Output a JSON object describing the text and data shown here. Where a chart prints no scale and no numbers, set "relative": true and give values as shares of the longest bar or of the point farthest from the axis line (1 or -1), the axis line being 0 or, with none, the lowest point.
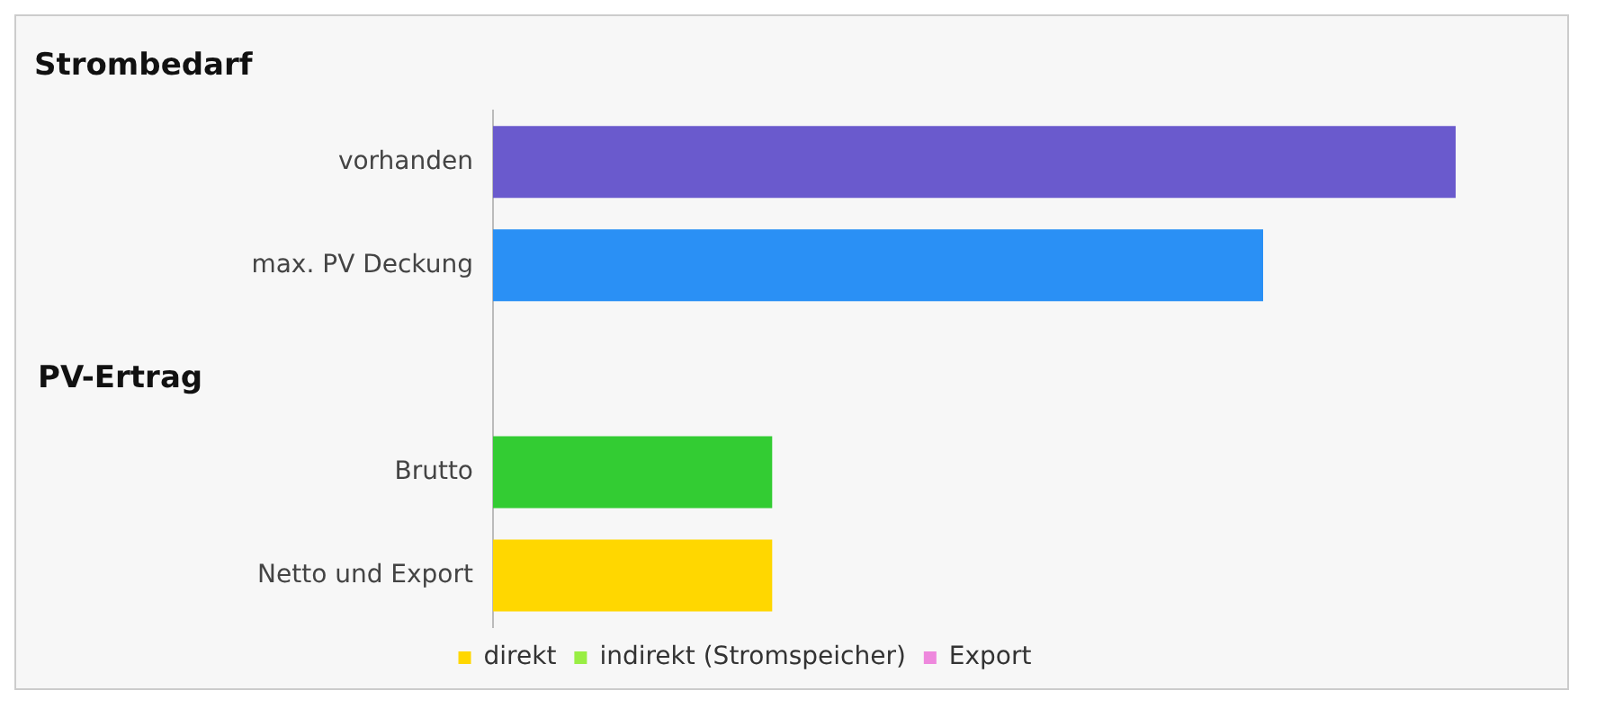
{
  "chart_data": {
    "type": "bar",
    "orientation": "horizontal",
    "relative": true,
    "stacked": true,
    "title": "Strombedarf",
    "annotations": [
      "PV-Ertrag"
    ],
    "categories": [
      "vorhanden",
      "max. PV Deckung",
      null,
      "Brutto",
      "Netto und Export"
    ],
    "legend": "bottom",
    "series": [
      {
        "colors": [
          "#6a5acd",
          "#2a90f5",
          "#33cc33",
          "#33cc33",
          "#33cc33"
        ],
        "values": [
          1,
          0.8,
          null,
          0.29,
          null
        ]
      },
      {
        "name": "direkt",
        "color": "#ffd700",
        "values": [
          null,
          null,
          null,
          null,
          0.29
        ]
      },
      {
        "name": "indirekt (Stromspeicher)",
        "color": "#99ee44",
        "values": [
          null,
          null,
          null,
          null,
          null
        ]
      },
      {
        "name": "Export",
        "color": "#ee88dd",
        "values": [
          null,
          null,
          null,
          null,
          null
        ]
      }
    ]
  }
}
